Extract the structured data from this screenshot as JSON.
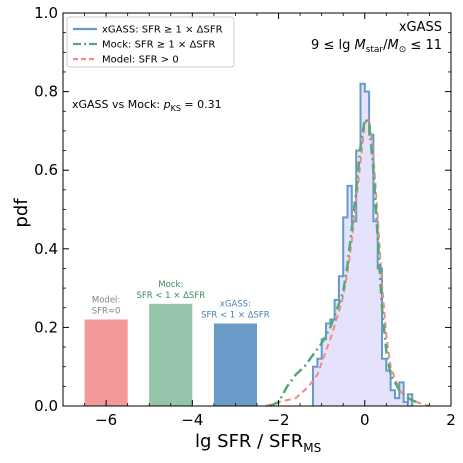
{
  "chart_data": {
    "type": "line",
    "xlabel": "lg SFR / SFR",
    "xlabel_sub": "MS",
    "ylabel": "pdf",
    "xlim": [
      -7.0,
      2.0
    ],
    "ylim": [
      0.0,
      1.0
    ],
    "xticks": [
      -6,
      -4,
      -2,
      0,
      2
    ],
    "yticks": [
      0.0,
      0.2,
      0.4,
      0.6,
      0.8,
      1.0
    ],
    "xtick_labels": [
      "−6",
      "−4",
      "−2",
      "0",
      "2"
    ],
    "ytick_labels": [
      "0.0",
      "0.2",
      "0.4",
      "0.6",
      "0.8",
      "1.0"
    ],
    "grid": false,
    "legend_position": "top-left",
    "colors": {
      "xgass": "#6699cc",
      "mock": "#55a878",
      "model": "#f08c88",
      "fill": "#e5e3fb",
      "bar_model": "#f4999a",
      "bar_mock": "#94c5aa",
      "bar_xgass": "#6a9bc8"
    },
    "legend": [
      {
        "label": "xGASS: SFR ≥ 1 × ΔSFR",
        "style": "solid",
        "color": "#6699cc"
      },
      {
        "label": "Mock: SFR ≥ 1 × ΔSFR",
        "style": "dashdot",
        "color": "#55a878"
      },
      {
        "label": "Model: SFR > 0",
        "style": "dashed",
        "color": "#f08c88"
      }
    ],
    "annotations": {
      "sample": "xGASS",
      "mass_range": "9 ≤ lg M_star/M_⊙ ≤ 11",
      "ks_test": "xGASS vs Mock: p_KS = 0.31"
    },
    "bars": [
      {
        "label_lines": [
          "Model:",
          "SFR=0"
        ],
        "x0": -6.5,
        "x1": -5.5,
        "value": 0.22,
        "color": "#f4999a",
        "label_color": "#808080"
      },
      {
        "label_lines": [
          "Mock:",
          "SFR < 1 × ΔSFR"
        ],
        "x0": -5.0,
        "x1": -4.0,
        "value": 0.26,
        "color": "#94c5aa",
        "label_color": "#3a8a5c"
      },
      {
        "label_lines": [
          "xGASS:",
          "SFR < 1 × ΔSFR"
        ],
        "x0": -3.5,
        "x1": -2.5,
        "value": 0.21,
        "color": "#6a9bc8",
        "label_color": "#4a7fb5"
      }
    ],
    "series": [
      {
        "name": "xGASS: SFR ≥ 1 × ΔSFR",
        "kind": "step",
        "edges": [
          -1.2,
          -1.1,
          -1.0,
          -0.9,
          -0.8,
          -0.7,
          -0.6,
          -0.5,
          -0.4,
          -0.3,
          -0.2,
          -0.1,
          0.0,
          0.1,
          0.2,
          0.3,
          0.4,
          0.5,
          0.6,
          0.7,
          0.8,
          0.9,
          1.0,
          1.1
        ],
        "values": [
          0.1,
          0.12,
          0.17,
          0.21,
          0.22,
          0.27,
          0.33,
          0.48,
          0.56,
          0.47,
          0.65,
          0.82,
          0.8,
          0.69,
          0.47,
          0.35,
          0.12,
          0.09,
          0.04,
          0.02,
          0.06,
          0.01,
          0.03
        ]
      },
      {
        "name": "Mock: SFR ≥ 1 × ΔSFR",
        "kind": "curve",
        "x": [
          -2.2,
          -2.0,
          -1.8,
          -1.6,
          -1.4,
          -1.2,
          -1.0,
          -0.8,
          -0.6,
          -0.5,
          -0.4,
          -0.3,
          -0.2,
          -0.1,
          0.0,
          0.1,
          0.2,
          0.3,
          0.4,
          0.5,
          0.6,
          0.8,
          1.0,
          1.2
        ],
        "y": [
          0.0,
          0.01,
          0.05,
          0.08,
          0.1,
          0.13,
          0.16,
          0.2,
          0.26,
          0.29,
          0.36,
          0.45,
          0.55,
          0.66,
          0.73,
          0.72,
          0.6,
          0.43,
          0.25,
          0.14,
          0.08,
          0.04,
          0.02,
          0.01
        ]
      },
      {
        "name": "Model: SFR > 0",
        "kind": "curve",
        "x": [
          -2.3,
          -2.0,
          -1.6,
          -1.3,
          -1.1,
          -1.0,
          -0.8,
          -0.6,
          -0.5,
          -0.4,
          -0.3,
          -0.2,
          -0.1,
          0.0,
          0.1,
          0.2,
          0.3,
          0.4,
          0.5,
          0.6,
          0.8,
          1.0,
          1.2,
          1.5
        ],
        "y": [
          0.0,
          0.01,
          0.02,
          0.05,
          0.08,
          0.11,
          0.17,
          0.24,
          0.28,
          0.34,
          0.42,
          0.52,
          0.62,
          0.72,
          0.73,
          0.64,
          0.48,
          0.31,
          0.18,
          0.1,
          0.04,
          0.02,
          0.01,
          0.0
        ]
      }
    ]
  }
}
